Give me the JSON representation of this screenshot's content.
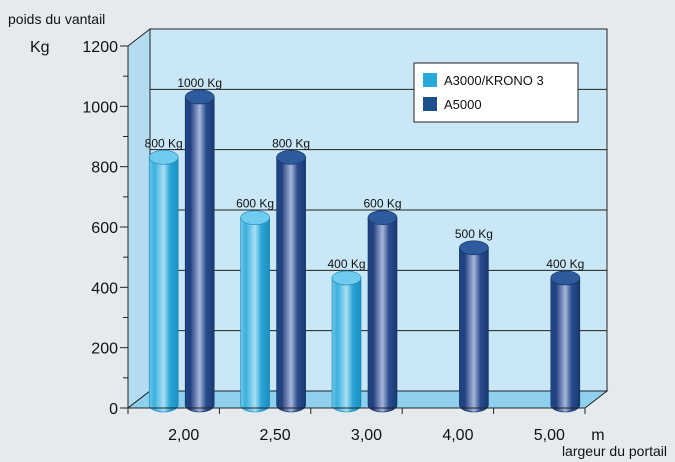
{
  "chart_data": {
    "type": "bar",
    "ylabel": "poids du vantail",
    "yunit": "Kg",
    "xlabel": "largeur du portail",
    "xunit": "m",
    "categories": [
      "2,00",
      "2,50",
      "3,00",
      "4,00",
      "5,00"
    ],
    "ylim": [
      0,
      1200
    ],
    "yticks": [
      0,
      200,
      400,
      600,
      800,
      1000,
      1200
    ],
    "grid": true,
    "legend_position": "top-right",
    "series": [
      {
        "name": "A3000/KRONO 3",
        "color": "#29a9da",
        "values": [
          800,
          600,
          400,
          null,
          null
        ],
        "labels": [
          "800 Kg",
          "600 Kg",
          "400 Kg",
          "",
          ""
        ]
      },
      {
        "name": "A5000",
        "color": "#1c4f8e",
        "values": [
          1000,
          800,
          600,
          500,
          400
        ],
        "labels": [
          "1000 Kg",
          "800 Kg",
          "600 Kg",
          "500 Kg",
          "400 Kg"
        ]
      }
    ]
  }
}
